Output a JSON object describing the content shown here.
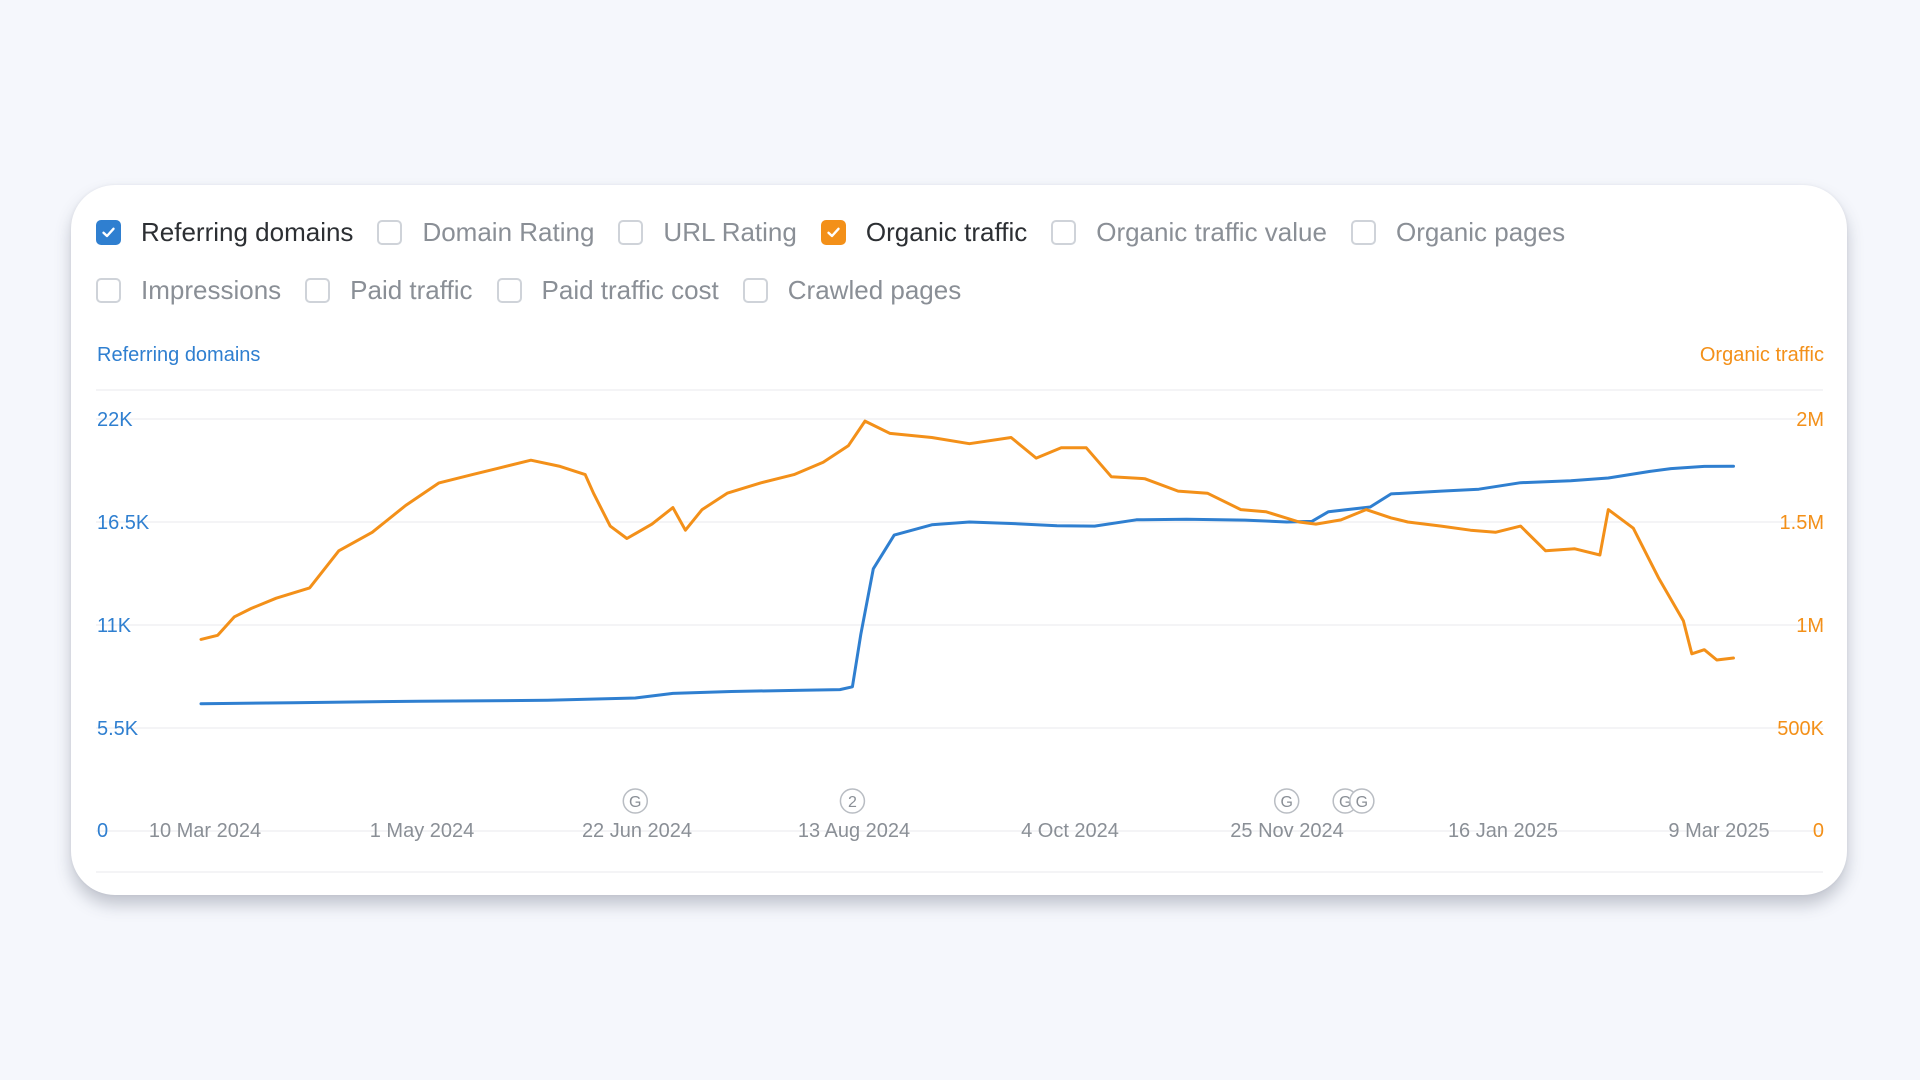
{
  "toggles": {
    "row1": [
      {
        "label": "Referring domains",
        "checked": true,
        "color": "#2f7fd0"
      },
      {
        "label": "Domain Rating",
        "checked": false
      },
      {
        "label": "URL Rating",
        "checked": false
      },
      {
        "label": "Organic traffic",
        "checked": true,
        "color": "#f39019"
      },
      {
        "label": "Organic traffic value",
        "checked": false
      },
      {
        "label": "Organic pages",
        "checked": false
      }
    ],
    "row2": [
      {
        "label": "Impressions",
        "checked": false
      },
      {
        "label": "Paid traffic",
        "checked": false
      },
      {
        "label": "Paid traffic cost",
        "checked": false
      },
      {
        "label": "Crawled pages",
        "checked": false
      }
    ]
  },
  "chart_data": {
    "type": "line",
    "left_axis_label": "Referring domains",
    "right_axis_label": "Organic traffic",
    "left_ticks": [
      "22K",
      "16.5K",
      "11K",
      "5.5K",
      "0"
    ],
    "right_ticks": [
      "2M",
      "1.5M",
      "1M",
      "500K",
      "0"
    ],
    "left_ylim": [
      0,
      22000
    ],
    "right_ylim": [
      0,
      2000000
    ],
    "grid": true,
    "x_ticks": [
      "10 Mar 2024",
      "1 May 2024",
      "22 Jun 2024",
      "13 Aug 2024",
      "4 Oct 2024",
      "25 Nov 2024",
      "16 Jan 2025",
      "9 Mar 2025"
    ],
    "x_range": [
      "2024-03-10",
      "2025-03-09"
    ],
    "colors": {
      "referring_domains": "#2f7fd0",
      "organic_traffic": "#f39019"
    },
    "markers": [
      {
        "date": "2024-06-22",
        "label": "G"
      },
      {
        "date": "2024-08-13",
        "label": "2"
      },
      {
        "date": "2024-11-25",
        "label": "G"
      },
      {
        "date": "2024-12-09",
        "label": "G"
      },
      {
        "date": "2024-12-13",
        "label": "G"
      }
    ],
    "series": [
      {
        "name": "Referring domains",
        "axis": "left",
        "points": [
          [
            "2024-03-10",
            6800
          ],
          [
            "2024-04-01",
            6850
          ],
          [
            "2024-05-01",
            6930
          ],
          [
            "2024-06-01",
            6980
          ],
          [
            "2024-06-22",
            7100
          ],
          [
            "2024-07-01",
            7350
          ],
          [
            "2024-07-15",
            7450
          ],
          [
            "2024-08-01",
            7520
          ],
          [
            "2024-08-10",
            7550
          ],
          [
            "2024-08-13",
            7700
          ],
          [
            "2024-08-15",
            10500
          ],
          [
            "2024-08-18",
            14000
          ],
          [
            "2024-08-23",
            15800
          ],
          [
            "2024-09-01",
            16350
          ],
          [
            "2024-09-10",
            16500
          ],
          [
            "2024-09-20",
            16420
          ],
          [
            "2024-10-01",
            16300
          ],
          [
            "2024-10-10",
            16280
          ],
          [
            "2024-10-20",
            16620
          ],
          [
            "2024-11-01",
            16650
          ],
          [
            "2024-11-15",
            16600
          ],
          [
            "2024-11-25",
            16500
          ],
          [
            "2024-12-01",
            16530
          ],
          [
            "2024-12-05",
            17050
          ],
          [
            "2024-12-15",
            17300
          ],
          [
            "2024-12-20",
            18000
          ],
          [
            "2025-01-01",
            18150
          ],
          [
            "2025-01-10",
            18250
          ],
          [
            "2025-01-20",
            18600
          ],
          [
            "2025-02-01",
            18700
          ],
          [
            "2025-02-10",
            18850
          ],
          [
            "2025-02-20",
            19200
          ],
          [
            "2025-02-25",
            19350
          ],
          [
            "2025-03-05",
            19470
          ],
          [
            "2025-03-12",
            19480
          ]
        ]
      },
      {
        "name": "Organic traffic",
        "axis": "right",
        "points": [
          [
            "2024-03-10",
            930000
          ],
          [
            "2024-03-14",
            950000
          ],
          [
            "2024-03-18",
            1040000
          ],
          [
            "2024-03-22",
            1080000
          ],
          [
            "2024-03-28",
            1130000
          ],
          [
            "2024-04-05",
            1180000
          ],
          [
            "2024-04-12",
            1360000
          ],
          [
            "2024-04-20",
            1450000
          ],
          [
            "2024-04-28",
            1580000
          ],
          [
            "2024-05-06",
            1690000
          ],
          [
            "2024-05-14",
            1730000
          ],
          [
            "2024-05-20",
            1760000
          ],
          [
            "2024-05-28",
            1800000
          ],
          [
            "2024-06-04",
            1770000
          ],
          [
            "2024-06-10",
            1730000
          ],
          [
            "2024-06-12",
            1640000
          ],
          [
            "2024-06-16",
            1480000
          ],
          [
            "2024-06-20",
            1420000
          ],
          [
            "2024-06-26",
            1490000
          ],
          [
            "2024-07-01",
            1570000
          ],
          [
            "2024-07-04",
            1460000
          ],
          [
            "2024-07-08",
            1560000
          ],
          [
            "2024-07-14",
            1640000
          ],
          [
            "2024-07-22",
            1690000
          ],
          [
            "2024-07-30",
            1730000
          ],
          [
            "2024-08-06",
            1790000
          ],
          [
            "2024-08-12",
            1870000
          ],
          [
            "2024-08-16",
            1990000
          ],
          [
            "2024-08-22",
            1930000
          ],
          [
            "2024-09-01",
            1910000
          ],
          [
            "2024-09-10",
            1880000
          ],
          [
            "2024-09-20",
            1910000
          ],
          [
            "2024-09-26",
            1810000
          ],
          [
            "2024-10-02",
            1860000
          ],
          [
            "2024-10-08",
            1860000
          ],
          [
            "2024-10-14",
            1720000
          ],
          [
            "2024-10-22",
            1710000
          ],
          [
            "2024-10-30",
            1650000
          ],
          [
            "2024-11-06",
            1640000
          ],
          [
            "2024-11-14",
            1560000
          ],
          [
            "2024-11-20",
            1550000
          ],
          [
            "2024-11-28",
            1500000
          ],
          [
            "2024-12-02",
            1490000
          ],
          [
            "2024-12-08",
            1510000
          ],
          [
            "2024-12-14",
            1560000
          ],
          [
            "2024-12-20",
            1520000
          ],
          [
            "2024-12-24",
            1500000
          ],
          [
            "2025-01-01",
            1480000
          ],
          [
            "2025-01-08",
            1460000
          ],
          [
            "2025-01-14",
            1450000
          ],
          [
            "2025-01-20",
            1480000
          ],
          [
            "2025-01-26",
            1360000
          ],
          [
            "2025-02-02",
            1370000
          ],
          [
            "2025-02-08",
            1340000
          ],
          [
            "2025-02-10",
            1560000
          ],
          [
            "2025-02-16",
            1470000
          ],
          [
            "2025-02-22",
            1230000
          ],
          [
            "2025-02-28",
            1020000
          ],
          [
            "2025-03-02",
            860000
          ],
          [
            "2025-03-05",
            880000
          ],
          [
            "2025-03-08",
            830000
          ],
          [
            "2025-03-12",
            840000
          ]
        ]
      }
    ]
  }
}
